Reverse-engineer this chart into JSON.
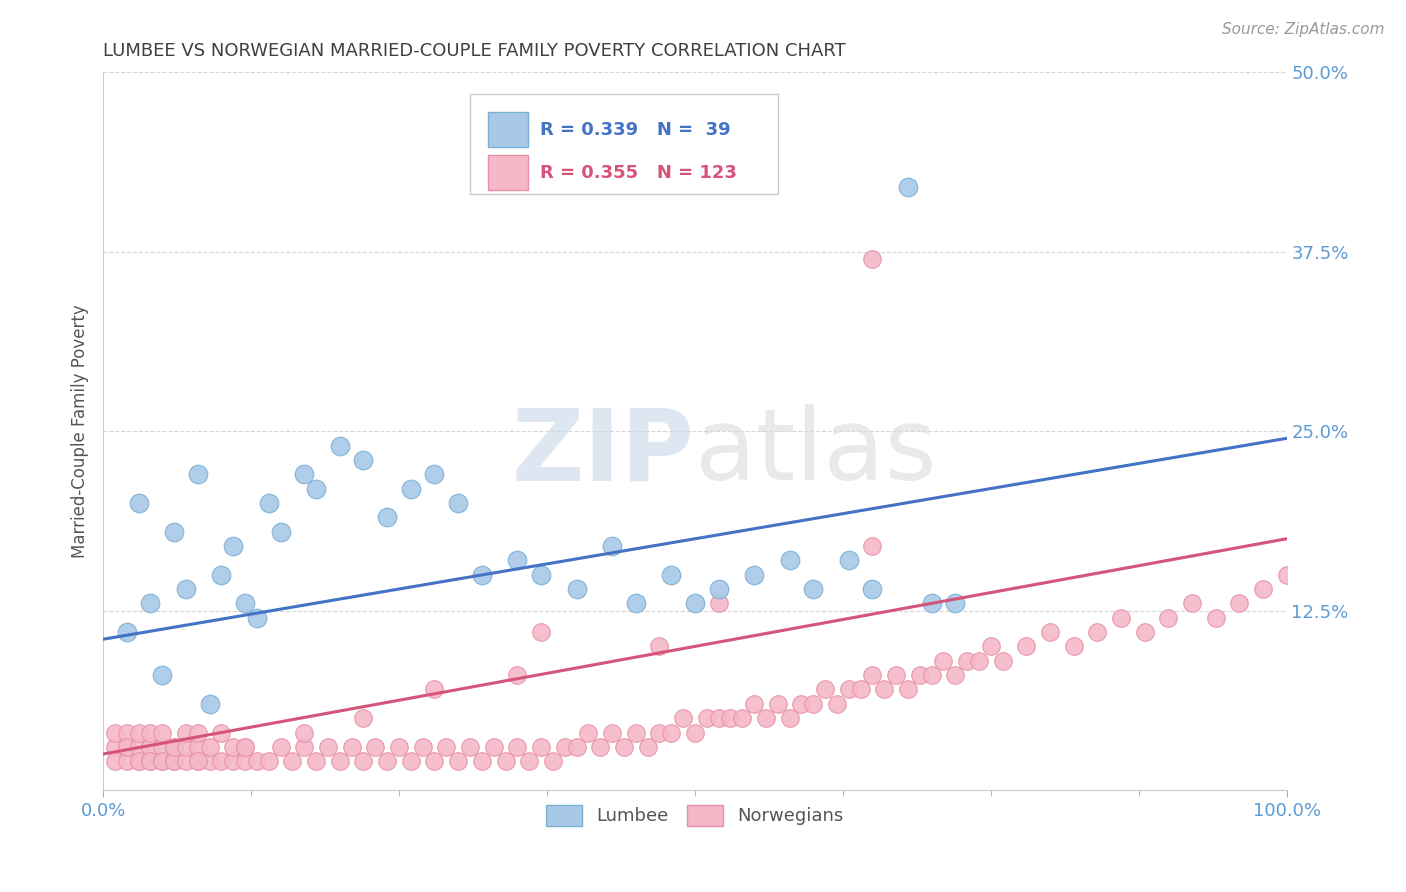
{
  "title": "LUMBEE VS NORWEGIAN MARRIED-COUPLE FAMILY POVERTY CORRELATION CHART",
  "source_text": "Source: ZipAtlas.com",
  "ylabel": "Married-Couple Family Poverty",
  "watermark_zip": "ZIP",
  "watermark_atlas": "atlas",
  "lumbee_R": 0.339,
  "lumbee_N": 39,
  "norwegian_R": 0.355,
  "norwegian_N": 123,
  "xlim": [
    0,
    100
  ],
  "ylim": [
    0,
    50
  ],
  "ytick_vals": [
    0,
    12.5,
    25.0,
    37.5,
    50.0
  ],
  "ytick_labels": [
    "",
    "12.5%",
    "25.0%",
    "37.5%",
    "50.0%"
  ],
  "lumbee_color": "#a8c8e8",
  "lumbee_edge_color": "#7aafd4",
  "lumbee_line_color": "#4472c4",
  "norwegian_color": "#f4b8c8",
  "norwegian_edge_color": "#e890a8",
  "norwegian_line_color": "#d4547a",
  "background_color": "#ffffff",
  "grid_color": "#cccccc",
  "title_color": "#404040",
  "tick_label_color": "#5b9bd5",
  "legend_text_color": "#333333",
  "legend_value_color": "#4472c4",
  "legend_norw_value_color": "#d4547a",
  "source_color": "#999999",
  "ylabel_color": "#555555",
  "lumbee_x": [
    2,
    3,
    4,
    5,
    6,
    7,
    8,
    9,
    10,
    11,
    12,
    13,
    14,
    15,
    17,
    18,
    20,
    22,
    24,
    26,
    28,
    30,
    32,
    35,
    37,
    40,
    43,
    45,
    48,
    50,
    52,
    55,
    58,
    60,
    63,
    65,
    68,
    70,
    72
  ],
  "lumbee_y": [
    11,
    20,
    13,
    8,
    18,
    14,
    22,
    6,
    15,
    17,
    13,
    12,
    20,
    18,
    22,
    21,
    24,
    23,
    19,
    21,
    22,
    20,
    15,
    16,
    15,
    14,
    17,
    13,
    15,
    13,
    14,
    15,
    16,
    14,
    16,
    14,
    42,
    13,
    13
  ],
  "lumbee_line_x": [
    0,
    100
  ],
  "lumbee_line_y": [
    10.5,
    24.5
  ],
  "norwegian_line_x": [
    0,
    100
  ],
  "norwegian_line_y": [
    2.5,
    17.5
  ],
  "norw_x_low": [
    1,
    1,
    1,
    2,
    2,
    2,
    2,
    3,
    3,
    3,
    3,
    4,
    4,
    4,
    4,
    5,
    5,
    5,
    5,
    6,
    6,
    6,
    6,
    7,
    7,
    7,
    8,
    8,
    8,
    9,
    9,
    10,
    10,
    11,
    11,
    12,
    12,
    13,
    14,
    15,
    16,
    17,
    18,
    19,
    20,
    21,
    22,
    23,
    24,
    25,
    26,
    27,
    28,
    29,
    30,
    31,
    32,
    33,
    34,
    35,
    36,
    37,
    38,
    39,
    40,
    41,
    42,
    43,
    44,
    45,
    46,
    47,
    48,
    49,
    50,
    51,
    52,
    53,
    54,
    55,
    56,
    57,
    58,
    59,
    60,
    61,
    62,
    63,
    64,
    65,
    66,
    67,
    68,
    69,
    70,
    71,
    72,
    73,
    74,
    75,
    76,
    78,
    80,
    82,
    84,
    86,
    88,
    90,
    92,
    94,
    96,
    98,
    100,
    52,
    37,
    65,
    47,
    35,
    28,
    22,
    17,
    12,
    8
  ],
  "norw_y_low": [
    3,
    2,
    4,
    2,
    3,
    4,
    3,
    2,
    3,
    2,
    4,
    2,
    3,
    2,
    4,
    2,
    3,
    2,
    4,
    2,
    3,
    2,
    3,
    2,
    3,
    4,
    2,
    3,
    4,
    2,
    3,
    2,
    4,
    2,
    3,
    2,
    3,
    2,
    2,
    3,
    2,
    3,
    2,
    3,
    2,
    3,
    2,
    3,
    2,
    3,
    2,
    3,
    2,
    3,
    2,
    3,
    2,
    3,
    2,
    3,
    2,
    3,
    2,
    3,
    3,
    4,
    3,
    4,
    3,
    4,
    3,
    4,
    4,
    5,
    4,
    5,
    5,
    5,
    5,
    6,
    5,
    6,
    5,
    6,
    6,
    7,
    6,
    7,
    7,
    8,
    7,
    8,
    7,
    8,
    8,
    9,
    8,
    9,
    9,
    10,
    9,
    10,
    11,
    10,
    11,
    12,
    11,
    12,
    13,
    12,
    13,
    14,
    15,
    13,
    11,
    17,
    10,
    8,
    7,
    5,
    4,
    3,
    2
  ]
}
